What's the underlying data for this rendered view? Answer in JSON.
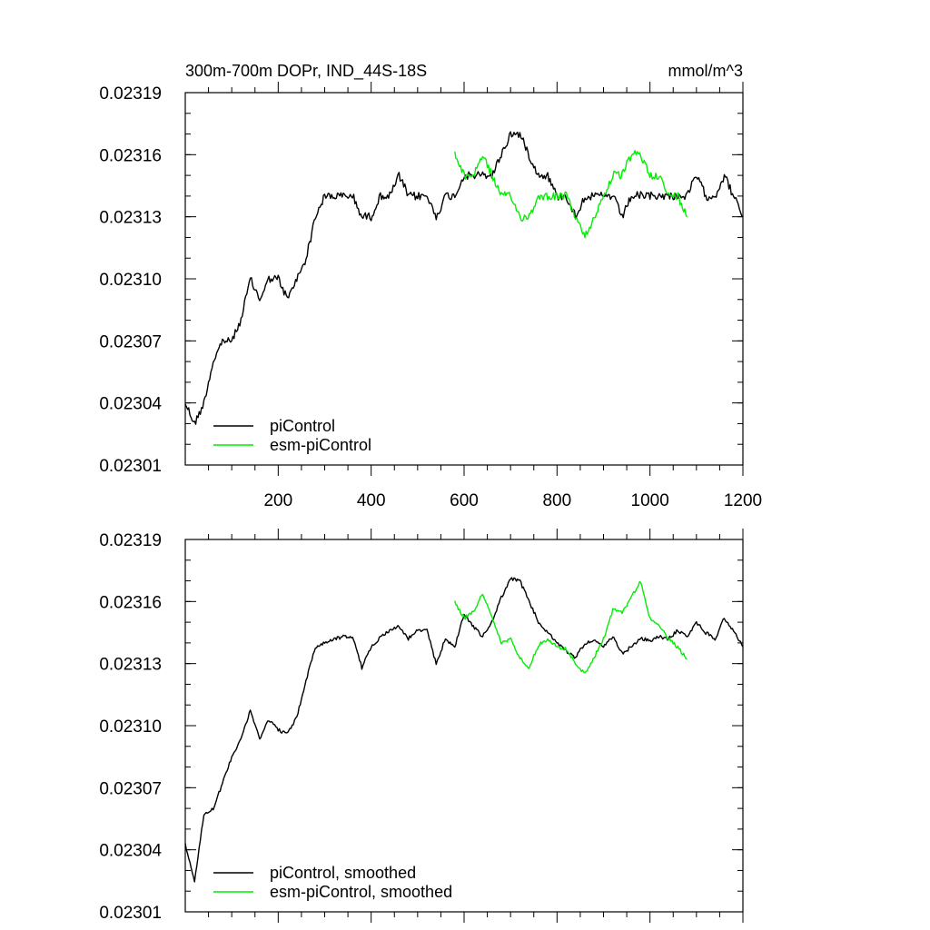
{
  "chart_data": [
    {
      "type": "line",
      "title": "300m-700m DOPr, IND_44S-18S",
      "units": "mmol/m^3",
      "xlim": [
        0,
        1200
      ],
      "ylim": [
        0.02301,
        0.02319
      ],
      "xticks": [
        200,
        400,
        600,
        800,
        1000,
        1200
      ],
      "xtick_labels": [
        "200",
        "400",
        "600",
        "800",
        "1000",
        "1200"
      ],
      "yticks": [
        0.02301,
        0.02304,
        0.02307,
        0.0231,
        0.02313,
        0.02316,
        0.02319
      ],
      "ytick_labels": [
        "0.02301",
        "0.02304",
        "0.02307",
        "0.02310",
        "0.02313",
        "0.02316",
        "0.02319"
      ],
      "grid": false,
      "legend_position": "bottom-left",
      "series": [
        {
          "name": "piControl",
          "color": "#000000",
          "x": [
            0,
            20,
            40,
            60,
            80,
            100,
            120,
            140,
            160,
            180,
            200,
            220,
            240,
            260,
            280,
            300,
            320,
            340,
            360,
            380,
            400,
            420,
            440,
            460,
            480,
            500,
            520,
            540,
            560,
            580,
            600,
            620,
            640,
            660,
            680,
            700,
            720,
            740,
            760,
            780,
            800,
            820,
            840,
            860,
            880,
            900,
            920,
            940,
            960,
            980,
            1000,
            1020,
            1040,
            1060,
            1080,
            1100,
            1120,
            1140,
            1160,
            1180,
            1200
          ],
          "values": [
            0.02304,
            0.02303,
            0.02304,
            0.02306,
            0.02307,
            0.02307,
            0.02308,
            0.0231,
            0.02309,
            0.0231,
            0.0231,
            0.02309,
            0.0231,
            0.02311,
            0.02313,
            0.02314,
            0.02314,
            0.02314,
            0.02314,
            0.02313,
            0.02313,
            0.02314,
            0.02314,
            0.02315,
            0.02314,
            0.02314,
            0.02314,
            0.02313,
            0.02314,
            0.02314,
            0.02315,
            0.02315,
            0.02315,
            0.02315,
            0.02316,
            0.02317,
            0.02317,
            0.02316,
            0.02315,
            0.02315,
            0.02314,
            0.02314,
            0.02313,
            0.02314,
            0.02314,
            0.02314,
            0.02314,
            0.02313,
            0.02314,
            0.02314,
            0.02314,
            0.02314,
            0.02314,
            0.02314,
            0.02314,
            0.02315,
            0.02314,
            0.02314,
            0.02315,
            0.02314,
            0.02313
          ]
        },
        {
          "name": "esm-piControl",
          "color": "#00ee00",
          "x": [
            580,
            600,
            620,
            640,
            660,
            680,
            700,
            720,
            740,
            760,
            780,
            800,
            820,
            840,
            860,
            880,
            900,
            920,
            940,
            960,
            980,
            1000,
            1020,
            1040,
            1060,
            1080
          ],
          "values": [
            0.02316,
            0.02315,
            0.02315,
            0.02316,
            0.02315,
            0.02314,
            0.02314,
            0.02313,
            0.02313,
            0.02314,
            0.02314,
            0.02314,
            0.02314,
            0.02313,
            0.02312,
            0.02313,
            0.02314,
            0.02315,
            0.02315,
            0.02316,
            0.02316,
            0.02315,
            0.02315,
            0.02314,
            0.02314,
            0.02313
          ]
        }
      ]
    },
    {
      "type": "line",
      "xlim": [
        0,
        1200
      ],
      "ylim": [
        0.02301,
        0.02319
      ],
      "yticks": [
        0.02301,
        0.02304,
        0.02307,
        0.0231,
        0.02313,
        0.02316,
        0.02319
      ],
      "ytick_labels": [
        "0.02301",
        "0.02304",
        "0.02307",
        "0.02310",
        "0.02313",
        "0.02316",
        "0.02319"
      ],
      "grid": false,
      "legend_position": "bottom-left",
      "series": [
        {
          "name": "piControl, smoothed",
          "color": "#000000",
          "x": [
            0,
            20,
            40,
            60,
            80,
            100,
            120,
            140,
            160,
            180,
            200,
            220,
            240,
            260,
            280,
            300,
            320,
            340,
            360,
            380,
            400,
            420,
            440,
            460,
            480,
            500,
            520,
            540,
            560,
            580,
            600,
            620,
            640,
            660,
            680,
            700,
            720,
            740,
            760,
            780,
            800,
            820,
            840,
            860,
            880,
            900,
            920,
            940,
            960,
            980,
            1000,
            1020,
            1040,
            1060,
            1080,
            1100,
            1120,
            1140,
            1160,
            1180,
            1200
          ],
          "values": [
            0.023043,
            0.023025,
            0.023057,
            0.02306,
            0.023072,
            0.023085,
            0.023094,
            0.023107,
            0.023094,
            0.023103,
            0.023098,
            0.023096,
            0.023104,
            0.023122,
            0.023138,
            0.02314,
            0.023142,
            0.023143,
            0.023143,
            0.023128,
            0.023138,
            0.023143,
            0.023146,
            0.023148,
            0.023142,
            0.023146,
            0.023146,
            0.02313,
            0.023142,
            0.023138,
            0.023154,
            0.023148,
            0.023143,
            0.02315,
            0.023162,
            0.023171,
            0.02317,
            0.02316,
            0.02315,
            0.023145,
            0.02314,
            0.023136,
            0.023133,
            0.02314,
            0.023141,
            0.023138,
            0.023143,
            0.023135,
            0.023138,
            0.023142,
            0.023141,
            0.023143,
            0.023142,
            0.023146,
            0.023143,
            0.02315,
            0.023145,
            0.023142,
            0.023152,
            0.023146,
            0.023138
          ]
        },
        {
          "name": "esm-piControl, smoothed",
          "color": "#00ee00",
          "x": [
            580,
            600,
            620,
            640,
            660,
            680,
            700,
            720,
            740,
            760,
            780,
            800,
            820,
            840,
            860,
            880,
            900,
            920,
            940,
            960,
            980,
            1000,
            1020,
            1040,
            1060,
            1080
          ],
          "values": [
            0.02316,
            0.023152,
            0.023155,
            0.023164,
            0.023152,
            0.02314,
            0.023142,
            0.023133,
            0.023128,
            0.023139,
            0.023142,
            0.023138,
            0.023137,
            0.02313,
            0.023125,
            0.023133,
            0.023142,
            0.023156,
            0.023155,
            0.023162,
            0.02317,
            0.023152,
            0.023148,
            0.023142,
            0.023138,
            0.023132
          ]
        }
      ]
    }
  ]
}
